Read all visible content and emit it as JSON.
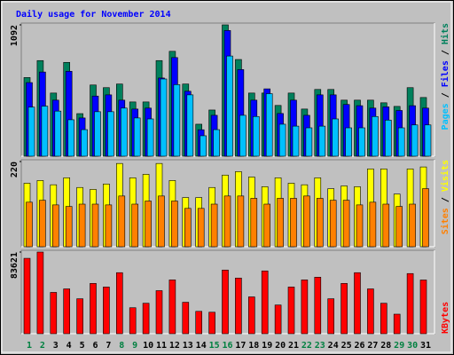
{
  "chart_data": [
    {
      "type": "bar",
      "title": "Daily usage for November 2014",
      "title_color": "#0000ff",
      "ylim": [
        0,
        1092
      ],
      "yticks": [
        1092
      ],
      "legend_separator": "/",
      "series": [
        {
          "name": "Hits",
          "color": "#00805c",
          "values": [
            654,
            795,
            525,
            780,
            354,
            592,
            570,
            600,
            451,
            451,
            795,
            872,
            600,
            266,
            384,
            1092,
            804,
            525,
            525,
            422,
            525,
            392,
            555,
            555,
            466,
            466,
            466,
            444,
            414,
            570,
            488
          ]
        },
        {
          "name": "Files",
          "color": "#0000ff",
          "values": [
            612,
            700,
            466,
            706,
            318,
            500,
            510,
            466,
            392,
            400,
            650,
            820,
            540,
            220,
            340,
            1045,
            720,
            466,
            560,
            355,
            466,
            340,
            510,
            510,
            430,
            420,
            400,
            410,
            380,
            420,
            400
          ]
        },
        {
          "name": "Pages",
          "color": "#00c0ff",
          "values": [
            408,
            416,
            375,
            303,
            221,
            370,
            370,
            400,
            318,
            310,
            642,
            595,
            510,
            170,
            221,
            833,
            340,
            330,
            520,
            266,
            250,
            236,
            250,
            310,
            236,
            236,
            330,
            300,
            236,
            260,
            260
          ]
        }
      ]
    },
    {
      "type": "bar",
      "ylim": [
        0,
        220
      ],
      "yticks": [
        220
      ],
      "legend_separator": "/",
      "series": [
        {
          "name": "Visits",
          "color": "#ffff00",
          "values": [
            164,
            171,
            160,
            178,
            153,
            148,
            162,
            215,
            178,
            187,
            215,
            171,
            127,
            127,
            153,
            185,
            194,
            180,
            155,
            178,
            164,
            160,
            178,
            150,
            157,
            155,
            201,
            201,
            136,
            201,
            206
          ]
        },
        {
          "name": "Sites",
          "color": "#ff8000",
          "values": [
            115,
            120,
            108,
            104,
            110,
            110,
            108,
            131,
            110,
            118,
            131,
            118,
            99,
            99,
            110,
            131,
            131,
            125,
            110,
            125,
            125,
            131,
            125,
            120,
            120,
            108,
            115,
            110,
            104,
            110,
            150
          ]
        }
      ]
    },
    {
      "type": "bar",
      "ylim": [
        0,
        83621
      ],
      "yticks": [
        83621
      ],
      "categories": [
        "1",
        "2",
        "3",
        "4",
        "5",
        "6",
        "7",
        "8",
        "9",
        "10",
        "11",
        "12",
        "13",
        "14",
        "15",
        "16",
        "17",
        "18",
        "19",
        "20",
        "21",
        "22",
        "23",
        "24",
        "25",
        "26",
        "27",
        "28",
        "29",
        "30",
        "31"
      ],
      "category_colors": [
        "#008040",
        "#008040",
        "#000000",
        "#000000",
        "#000000",
        "#000000",
        "#000000",
        "#008040",
        "#008040",
        "#000000",
        "#000000",
        "#000000",
        "#000000",
        "#000000",
        "#008040",
        "#008040",
        "#000000",
        "#000000",
        "#000000",
        "#000000",
        "#000000",
        "#008040",
        "#008040",
        "#000000",
        "#000000",
        "#000000",
        "#000000",
        "#000000",
        "#008040",
        "#008040",
        "#000000"
      ],
      "series": [
        {
          "name": "KBytes",
          "color": "#ff0000",
          "values": [
            77200,
            83621,
            42300,
            45900,
            35800,
            51500,
            47800,
            62500,
            26600,
            31200,
            44100,
            55100,
            32200,
            22900,
            22000,
            65200,
            57000,
            37700,
            64300,
            29400,
            47800,
            55100,
            57900,
            35800,
            51500,
            62500,
            45900,
            31200,
            20000,
            61600,
            55000
          ]
        }
      ]
    }
  ]
}
